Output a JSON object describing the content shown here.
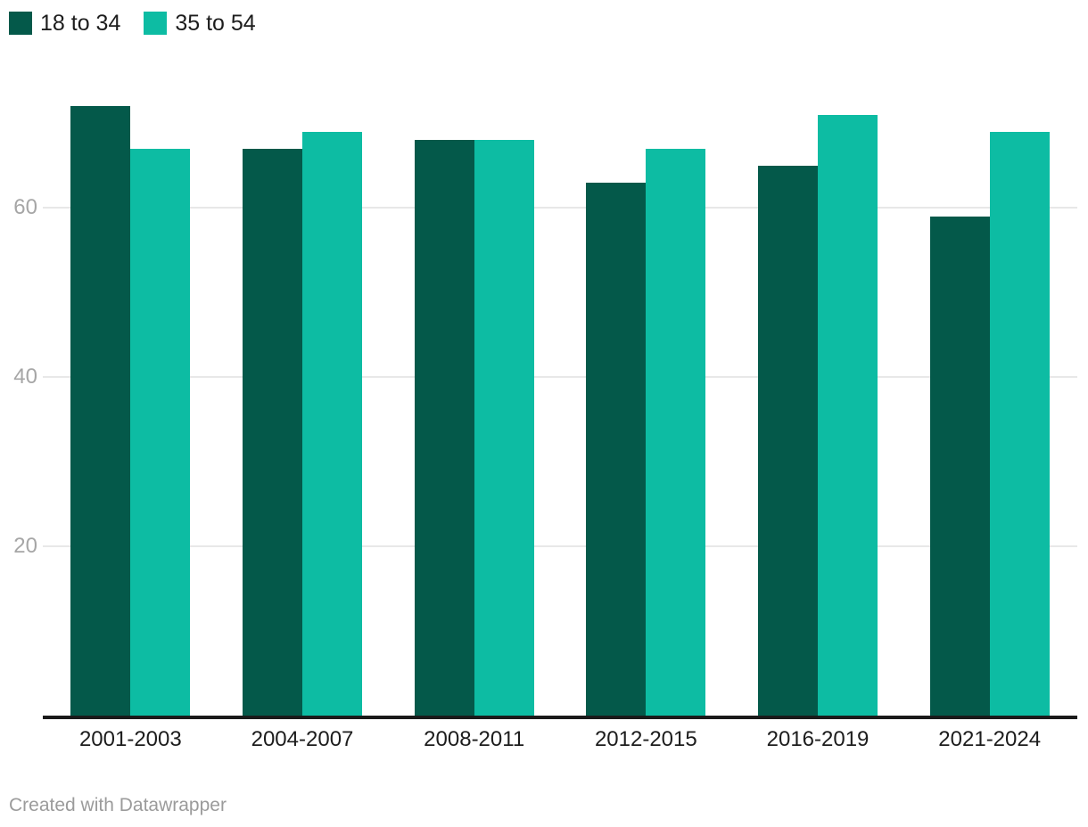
{
  "chart_data": {
    "type": "bar",
    "title": "",
    "xlabel": "",
    "ylabel": "",
    "categories": [
      "2001-2003",
      "2004-2007",
      "2008-2011",
      "2012-2015",
      "2016-2019",
      "2021-2024"
    ],
    "series": [
      {
        "name": "18 to 34",
        "color": "#04594a",
        "values": [
          72,
          67,
          68,
          63,
          65,
          59
        ]
      },
      {
        "name": "35 to 54",
        "color": "#0dbca3",
        "values": [
          67,
          69,
          68,
          67,
          71,
          69
        ]
      }
    ],
    "yticks": [
      20,
      40,
      60
    ],
    "ylim": [
      0,
      84
    ],
    "grid": true,
    "legend_position": "top-left"
  },
  "colors": {
    "axis_line": "#1a1a1a",
    "gridline": "#e8e8e8",
    "ytick_label": "#a6a6a6",
    "category_label": "#1d1d1d",
    "footer_text": "#9b9b9b",
    "background": "#ffffff"
  },
  "footer": {
    "credit": "Created with Datawrapper"
  }
}
